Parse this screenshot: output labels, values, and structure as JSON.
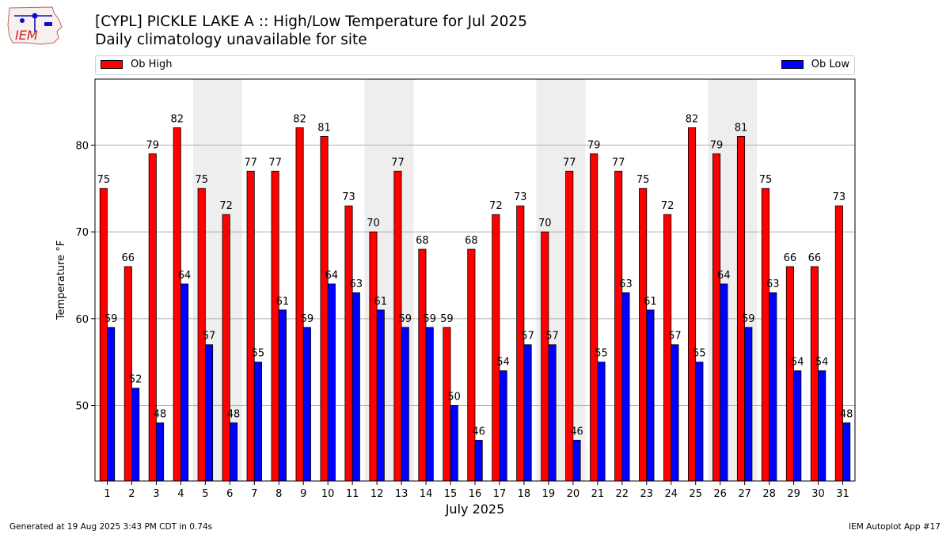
{
  "header": {
    "title_line1": "[CYPL] PICKLE LAKE  A :: High/Low Temperature for Jul 2025",
    "title_line2": "Daily climatology unavailable for site",
    "logo_text": "IEM"
  },
  "footer": {
    "left": "Generated at 19 Aug 2025 3:43 PM CDT in 0.74s",
    "right": "IEM Autoplot App #17"
  },
  "colors": {
    "high": "#ff0000",
    "low": "#0000ff",
    "weekend_band": "#eeeeee",
    "grid": "#b0b0b0"
  },
  "chart_data": {
    "type": "bar",
    "xlabel": "July 2025",
    "ylabel": "Temperature °F",
    "ylim": [
      41.3,
      87.6
    ],
    "yticks": [
      50,
      60,
      70,
      80
    ],
    "grid": "horizontal",
    "legend": "top",
    "categories": [
      "1",
      "2",
      "3",
      "4",
      "5",
      "6",
      "7",
      "8",
      "9",
      "10",
      "11",
      "12",
      "13",
      "14",
      "15",
      "16",
      "17",
      "18",
      "19",
      "20",
      "21",
      "22",
      "23",
      "24",
      "25",
      "26",
      "27",
      "28",
      "29",
      "30",
      "31"
    ],
    "shaded_days": [
      5,
      6,
      12,
      13,
      19,
      20,
      26,
      27
    ],
    "series": [
      {
        "name": "Ob High",
        "values": [
          75,
          66,
          79,
          82,
          75,
          72,
          77,
          77,
          82,
          81,
          73,
          70,
          77,
          68,
          59,
          68,
          72,
          73,
          70,
          77,
          79,
          77,
          75,
          72,
          82,
          79,
          81,
          75,
          66,
          66,
          73
        ]
      },
      {
        "name": "Ob Low",
        "values": [
          59,
          52,
          48,
          64,
          57,
          48,
          55,
          61,
          59,
          64,
          63,
          61,
          59,
          59,
          50,
          46,
          54,
          57,
          57,
          46,
          55,
          63,
          61,
          57,
          55,
          64,
          59,
          63,
          54,
          54,
          48
        ]
      }
    ]
  }
}
